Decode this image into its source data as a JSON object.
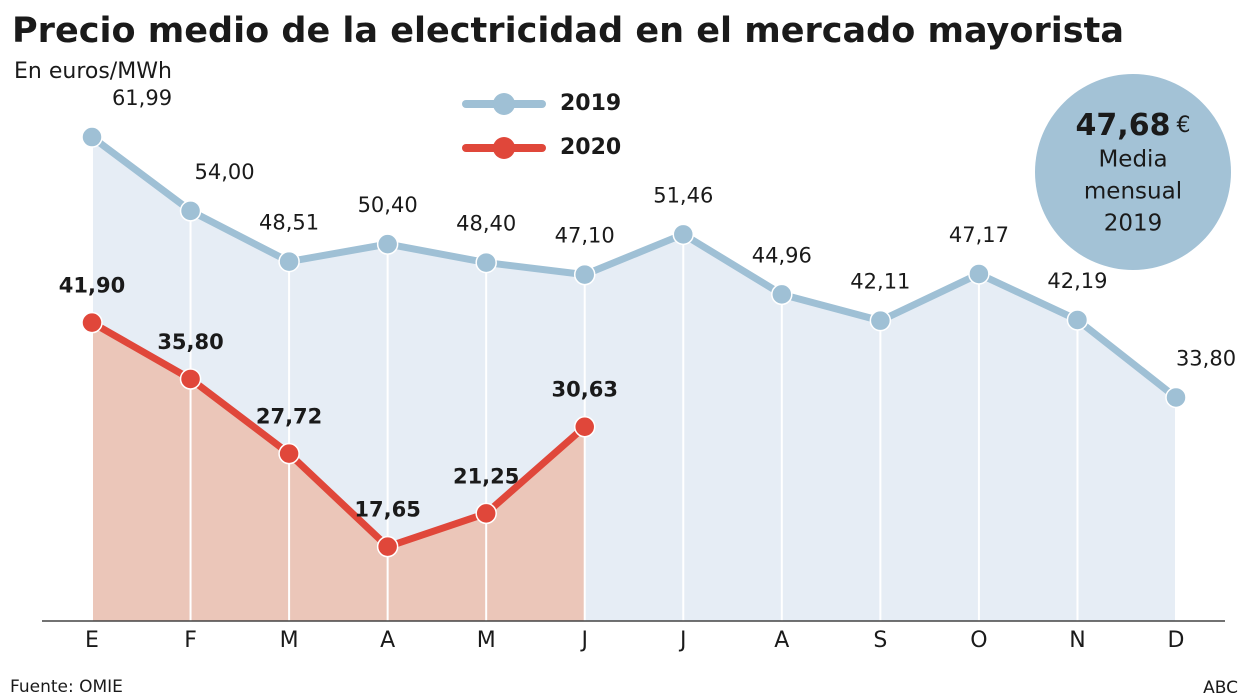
{
  "chart_data": {
    "type": "line",
    "title": "Precio medio de la electricidad en el mercado mayorista",
    "subtitle": "En euros/MWh",
    "categories": [
      "E",
      "F",
      "M",
      "A",
      "M",
      "J",
      "J",
      "A",
      "S",
      "O",
      "N",
      "D"
    ],
    "series": [
      {
        "name": "2019",
        "color": "#9fc0d5",
        "area_color": "#e6edf5",
        "values": [
          61.99,
          54.0,
          48.51,
          50.4,
          48.4,
          47.1,
          51.46,
          44.96,
          42.11,
          47.17,
          42.19,
          33.8
        ],
        "value_labels": [
          "61,99",
          "54,00",
          "48,51",
          "50,40",
          "48,40",
          "47,10",
          "51,46",
          "44,96",
          "42,11",
          "47,17",
          "42,19",
          "33,80"
        ]
      },
      {
        "name": "2020",
        "color": "#e0473a",
        "area_color": "#ebc6b9",
        "values": [
          41.9,
          35.8,
          27.72,
          17.65,
          21.25,
          30.63,
          null,
          null,
          null,
          null,
          null,
          null
        ],
        "value_labels": [
          "41,90",
          "35,80",
          "27,72",
          "17,65",
          "21,25",
          "30,63",
          null,
          null,
          null,
          null,
          null,
          null
        ]
      }
    ],
    "ylim": [
      9.6,
      66
    ],
    "grid": true,
    "annotation": {
      "amount": "47,68",
      "unit": "€",
      "text": [
        "Media",
        "mensual",
        "2019"
      ]
    },
    "source": "Fuente: OMIE",
    "credit": "ABC"
  }
}
